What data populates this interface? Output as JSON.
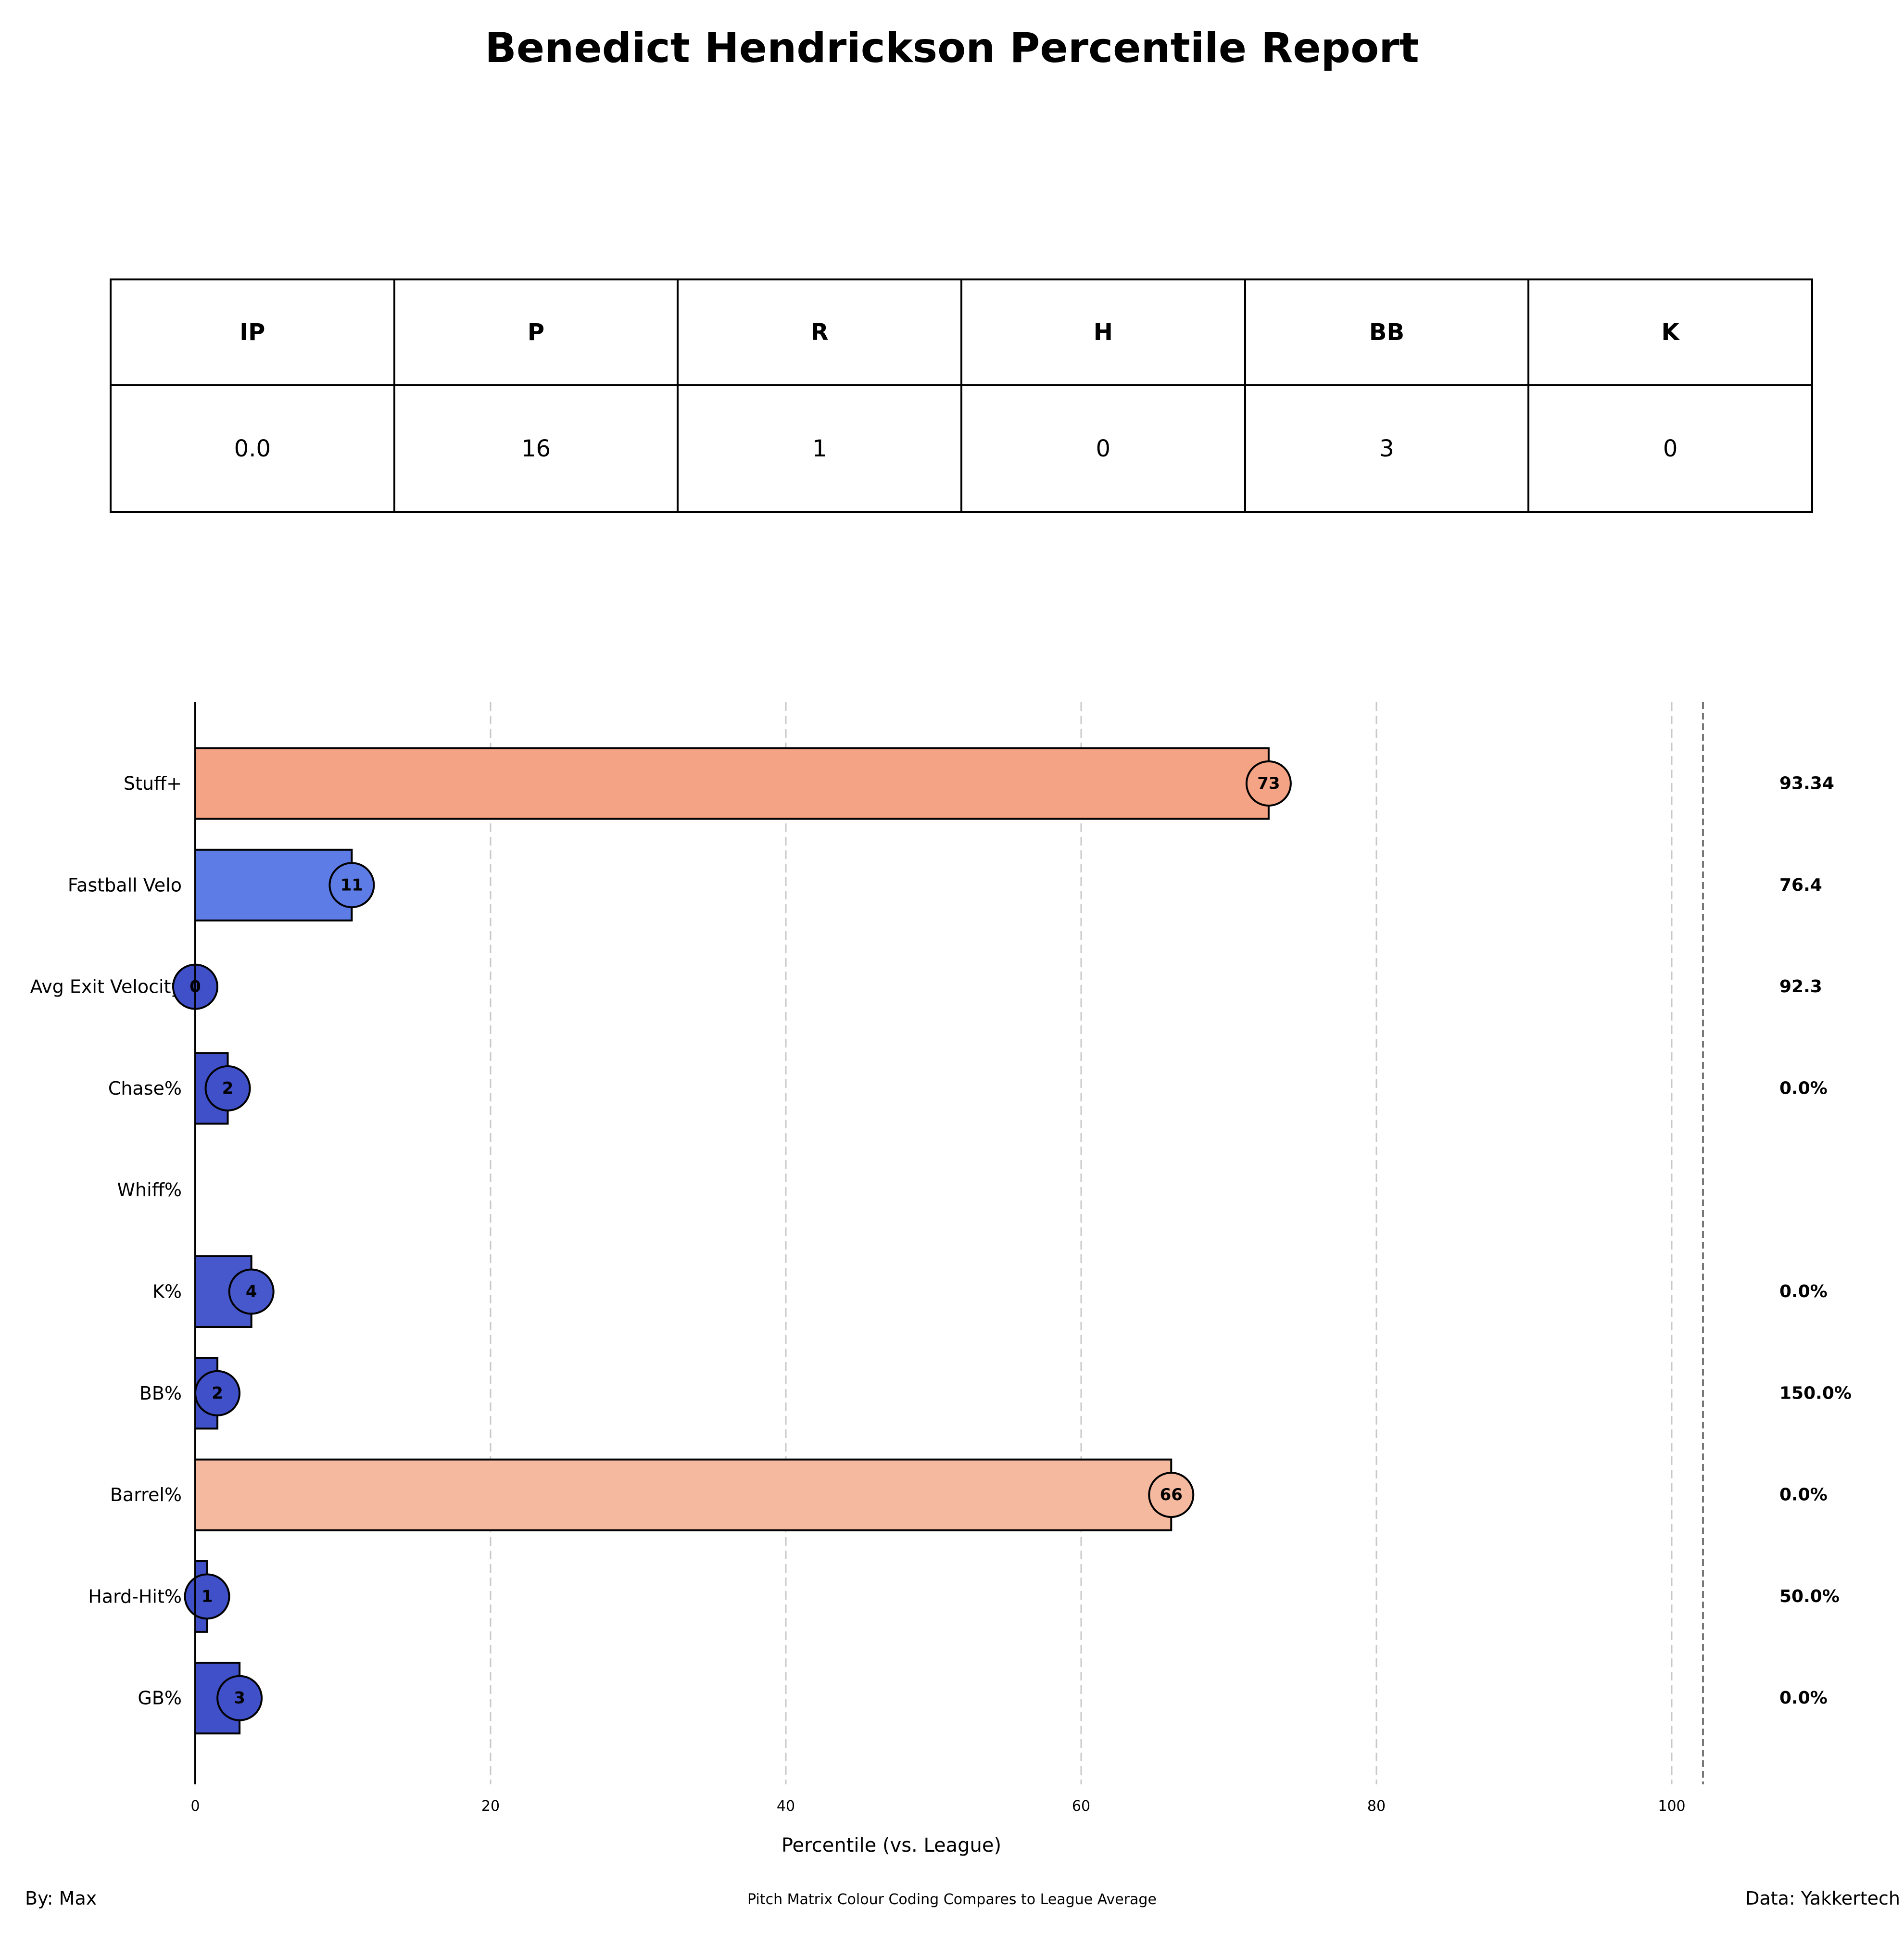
{
  "report": {
    "title": "Benedict Hendrickson Percentile Report",
    "author": "By: Max",
    "source": "Data: Yakkertech",
    "note": "Pitch Matrix Colour Coding Compares to League Average"
  },
  "stats_table": {
    "headers": [
      "IP",
      "P",
      "R",
      "H",
      "BB",
      "K"
    ],
    "values": [
      "0.0",
      "16",
      "1",
      "0",
      "3",
      "0"
    ]
  },
  "chart_data": {
    "type": "bar",
    "orientation": "horizontal",
    "title": "",
    "xlabel": "Percentile (vs. League)",
    "ylabel": "",
    "xlim": [
      0,
      102
    ],
    "xticks": [
      0,
      20,
      40,
      60,
      80,
      100
    ],
    "grid": "vertical dashed",
    "categories": [
      "Stuff+",
      "Fastball Velo",
      "Avg Exit Velocity",
      "Chase%",
      "Whiff%",
      "K%",
      "BB%",
      "Barrel%",
      "Hard-Hit%",
      "GB%"
    ],
    "percentiles": [
      72.7,
      10.6,
      0,
      2.2,
      null,
      3.8,
      1.5,
      66.1,
      0.8,
      3.0
    ],
    "percentile_labels": [
      "73",
      "11",
      "0",
      "2",
      "",
      "4",
      "2",
      "66",
      "1",
      "3"
    ],
    "raw_values": [
      "93.34",
      "76.4",
      "92.3",
      "0.0%",
      "",
      "0.0%",
      "150.0%",
      "0.0%",
      "50.0%",
      "0.0%"
    ],
    "bar_colors": [
      "#f5a385",
      "#5d7ce6",
      "#4050c8",
      "#4050c8",
      "",
      "#4658cc",
      "#4050c8",
      "#f4b99e",
      "#4050c8",
      "#4050c8"
    ]
  }
}
